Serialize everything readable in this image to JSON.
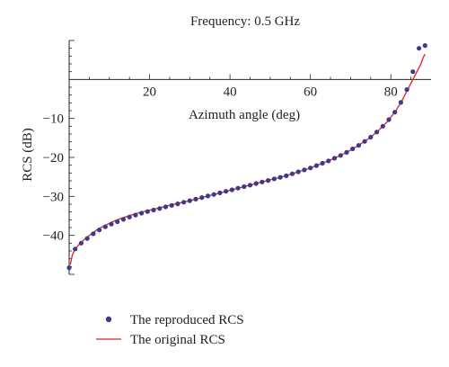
{
  "chart_data": {
    "type": "scatter",
    "title": "Frequency: 0.5 GHz",
    "xlabel": "Azimuth angle (deg)",
    "ylabel": "RCS (dB)",
    "xlim": [
      0,
      90
    ],
    "ylim": [
      -50,
      10
    ],
    "x_ticks": [
      20,
      40,
      60,
      80
    ],
    "y_ticks": [
      -40,
      -30,
      -20,
      -10
    ],
    "x_tick_labels": [
      "20",
      "40",
      "60",
      "80"
    ],
    "y_tick_labels": [
      "−40",
      "−30",
      "−20",
      "−10"
    ],
    "grid": false,
    "legend_position": "bottom-left",
    "series": [
      {
        "name": "The reproduced RCS",
        "style": "markers",
        "color": "#3d3a8c",
        "x": [
          0,
          1.5,
          3,
          4.5,
          6,
          7.5,
          9,
          10.5,
          12,
          13.5,
          15,
          16.5,
          18,
          19.5,
          21,
          22.5,
          24,
          25.5,
          27,
          28.5,
          30,
          31.5,
          33,
          34.5,
          36,
          37.5,
          39,
          40.5,
          42,
          43.5,
          45,
          46.5,
          48,
          49.5,
          51,
          52.5,
          54,
          55.5,
          57,
          58.5,
          60,
          61.5,
          63,
          64.5,
          66,
          67.5,
          69,
          70.5,
          72,
          73.5,
          75,
          76.5,
          78,
          79.5,
          81,
          82.5,
          84,
          85.5,
          87,
          88.5
        ],
        "y": [
          -48.3,
          -43.5,
          -42.0,
          -40.8,
          -39.6,
          -38.6,
          -37.8,
          -37.1,
          -36.5,
          -35.9,
          -35.3,
          -34.8,
          -34.3,
          -33.9,
          -33.5,
          -33.1,
          -32.7,
          -32.3,
          -31.9,
          -31.5,
          -31.1,
          -30.7,
          -30.3,
          -29.9,
          -29.5,
          -29.1,
          -28.7,
          -28.3,
          -27.9,
          -27.5,
          -27.1,
          -26.7,
          -26.3,
          -25.9,
          -25.5,
          -25.1,
          -24.7,
          -24.2,
          -23.7,
          -23.2,
          -22.7,
          -22.1,
          -21.5,
          -20.9,
          -20.2,
          -19.5,
          -18.7,
          -17.8,
          -16.9,
          -15.9,
          -14.8,
          -13.5,
          -12.0,
          -10.3,
          -8.4,
          -5.9,
          -2.6,
          2.0,
          8.0,
          8.7
        ]
      },
      {
        "name": "The original RCS",
        "style": "line",
        "color": "#e02020",
        "x": [
          0.3,
          0.8,
          1.5,
          2.5,
          3.5,
          5,
          7,
          9,
          11,
          13,
          15,
          18,
          21,
          24,
          27,
          30,
          33,
          36,
          39,
          42,
          45,
          48,
          51,
          54,
          57,
          60,
          63,
          66,
          69,
          72,
          75,
          77,
          79,
          81,
          82.5,
          84,
          85.5,
          86.5,
          87.5,
          88,
          88.5
        ],
        "y": [
          -47.5,
          -45.0,
          -43.5,
          -42.3,
          -41.3,
          -40.0,
          -38.5,
          -37.4,
          -36.4,
          -35.6,
          -34.9,
          -34.0,
          -33.3,
          -32.5,
          -31.8,
          -31.1,
          -30.3,
          -29.5,
          -28.7,
          -27.9,
          -27.1,
          -26.3,
          -25.5,
          -24.7,
          -23.7,
          -22.7,
          -21.5,
          -20.2,
          -18.7,
          -16.9,
          -14.8,
          -13.0,
          -11.0,
          -8.4,
          -6.0,
          -3.0,
          0.0,
          2.0,
          4.0,
          5.5,
          6.5
        ]
      }
    ]
  }
}
